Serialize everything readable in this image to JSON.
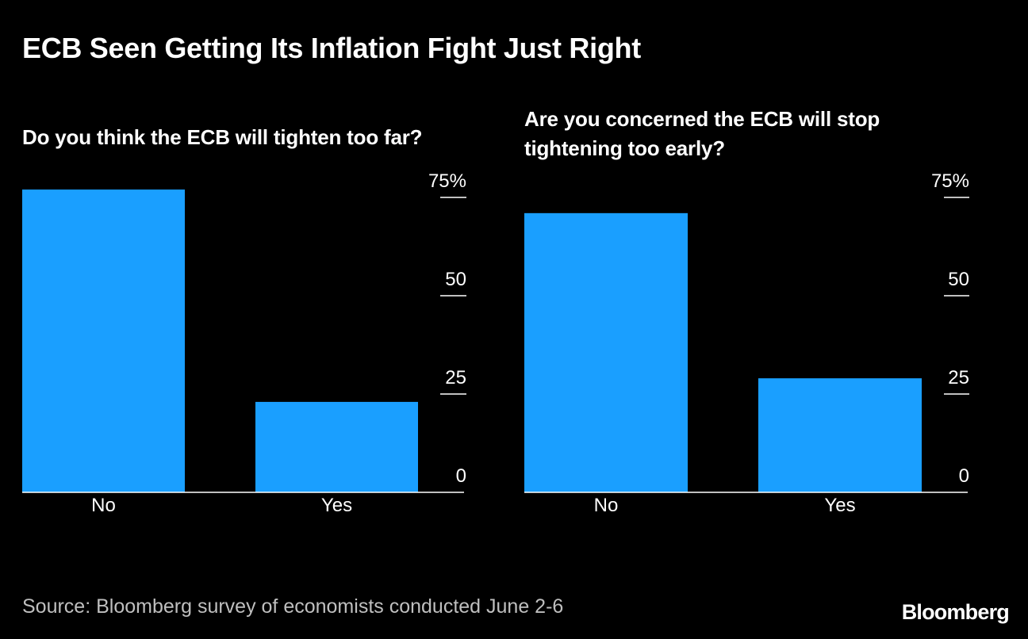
{
  "title": "ECB Seen Getting Its Inflation Fight Just Right",
  "source": "Source: Bloomberg survey of economists conducted June 2-6",
  "logo": "Bloomberg",
  "colors": {
    "background": "#000000",
    "bar": "#1a9fff",
    "text": "#ffffff",
    "muted": "#bfbfbf"
  },
  "chart_data": [
    {
      "type": "bar",
      "title": "Do you think the ECB will tighten too far?",
      "categories": [
        "No",
        "Yes"
      ],
      "values": [
        77,
        23
      ],
      "xlabel": "",
      "ylabel": "",
      "ylim": [
        0,
        75
      ],
      "yticks": [
        "0",
        "25",
        "50",
        "75%"
      ],
      "ytick_values": [
        0,
        25,
        50,
        75
      ],
      "axis_side": "right"
    },
    {
      "type": "bar",
      "title": "Are you concerned the ECB will stop tightening too early?",
      "categories": [
        "No",
        "Yes"
      ],
      "values": [
        71,
        29
      ],
      "xlabel": "",
      "ylabel": "",
      "ylim": [
        0,
        75
      ],
      "yticks": [
        "0",
        "25",
        "50",
        "75%"
      ],
      "ytick_values": [
        0,
        25,
        50,
        75
      ],
      "axis_side": "right"
    }
  ]
}
